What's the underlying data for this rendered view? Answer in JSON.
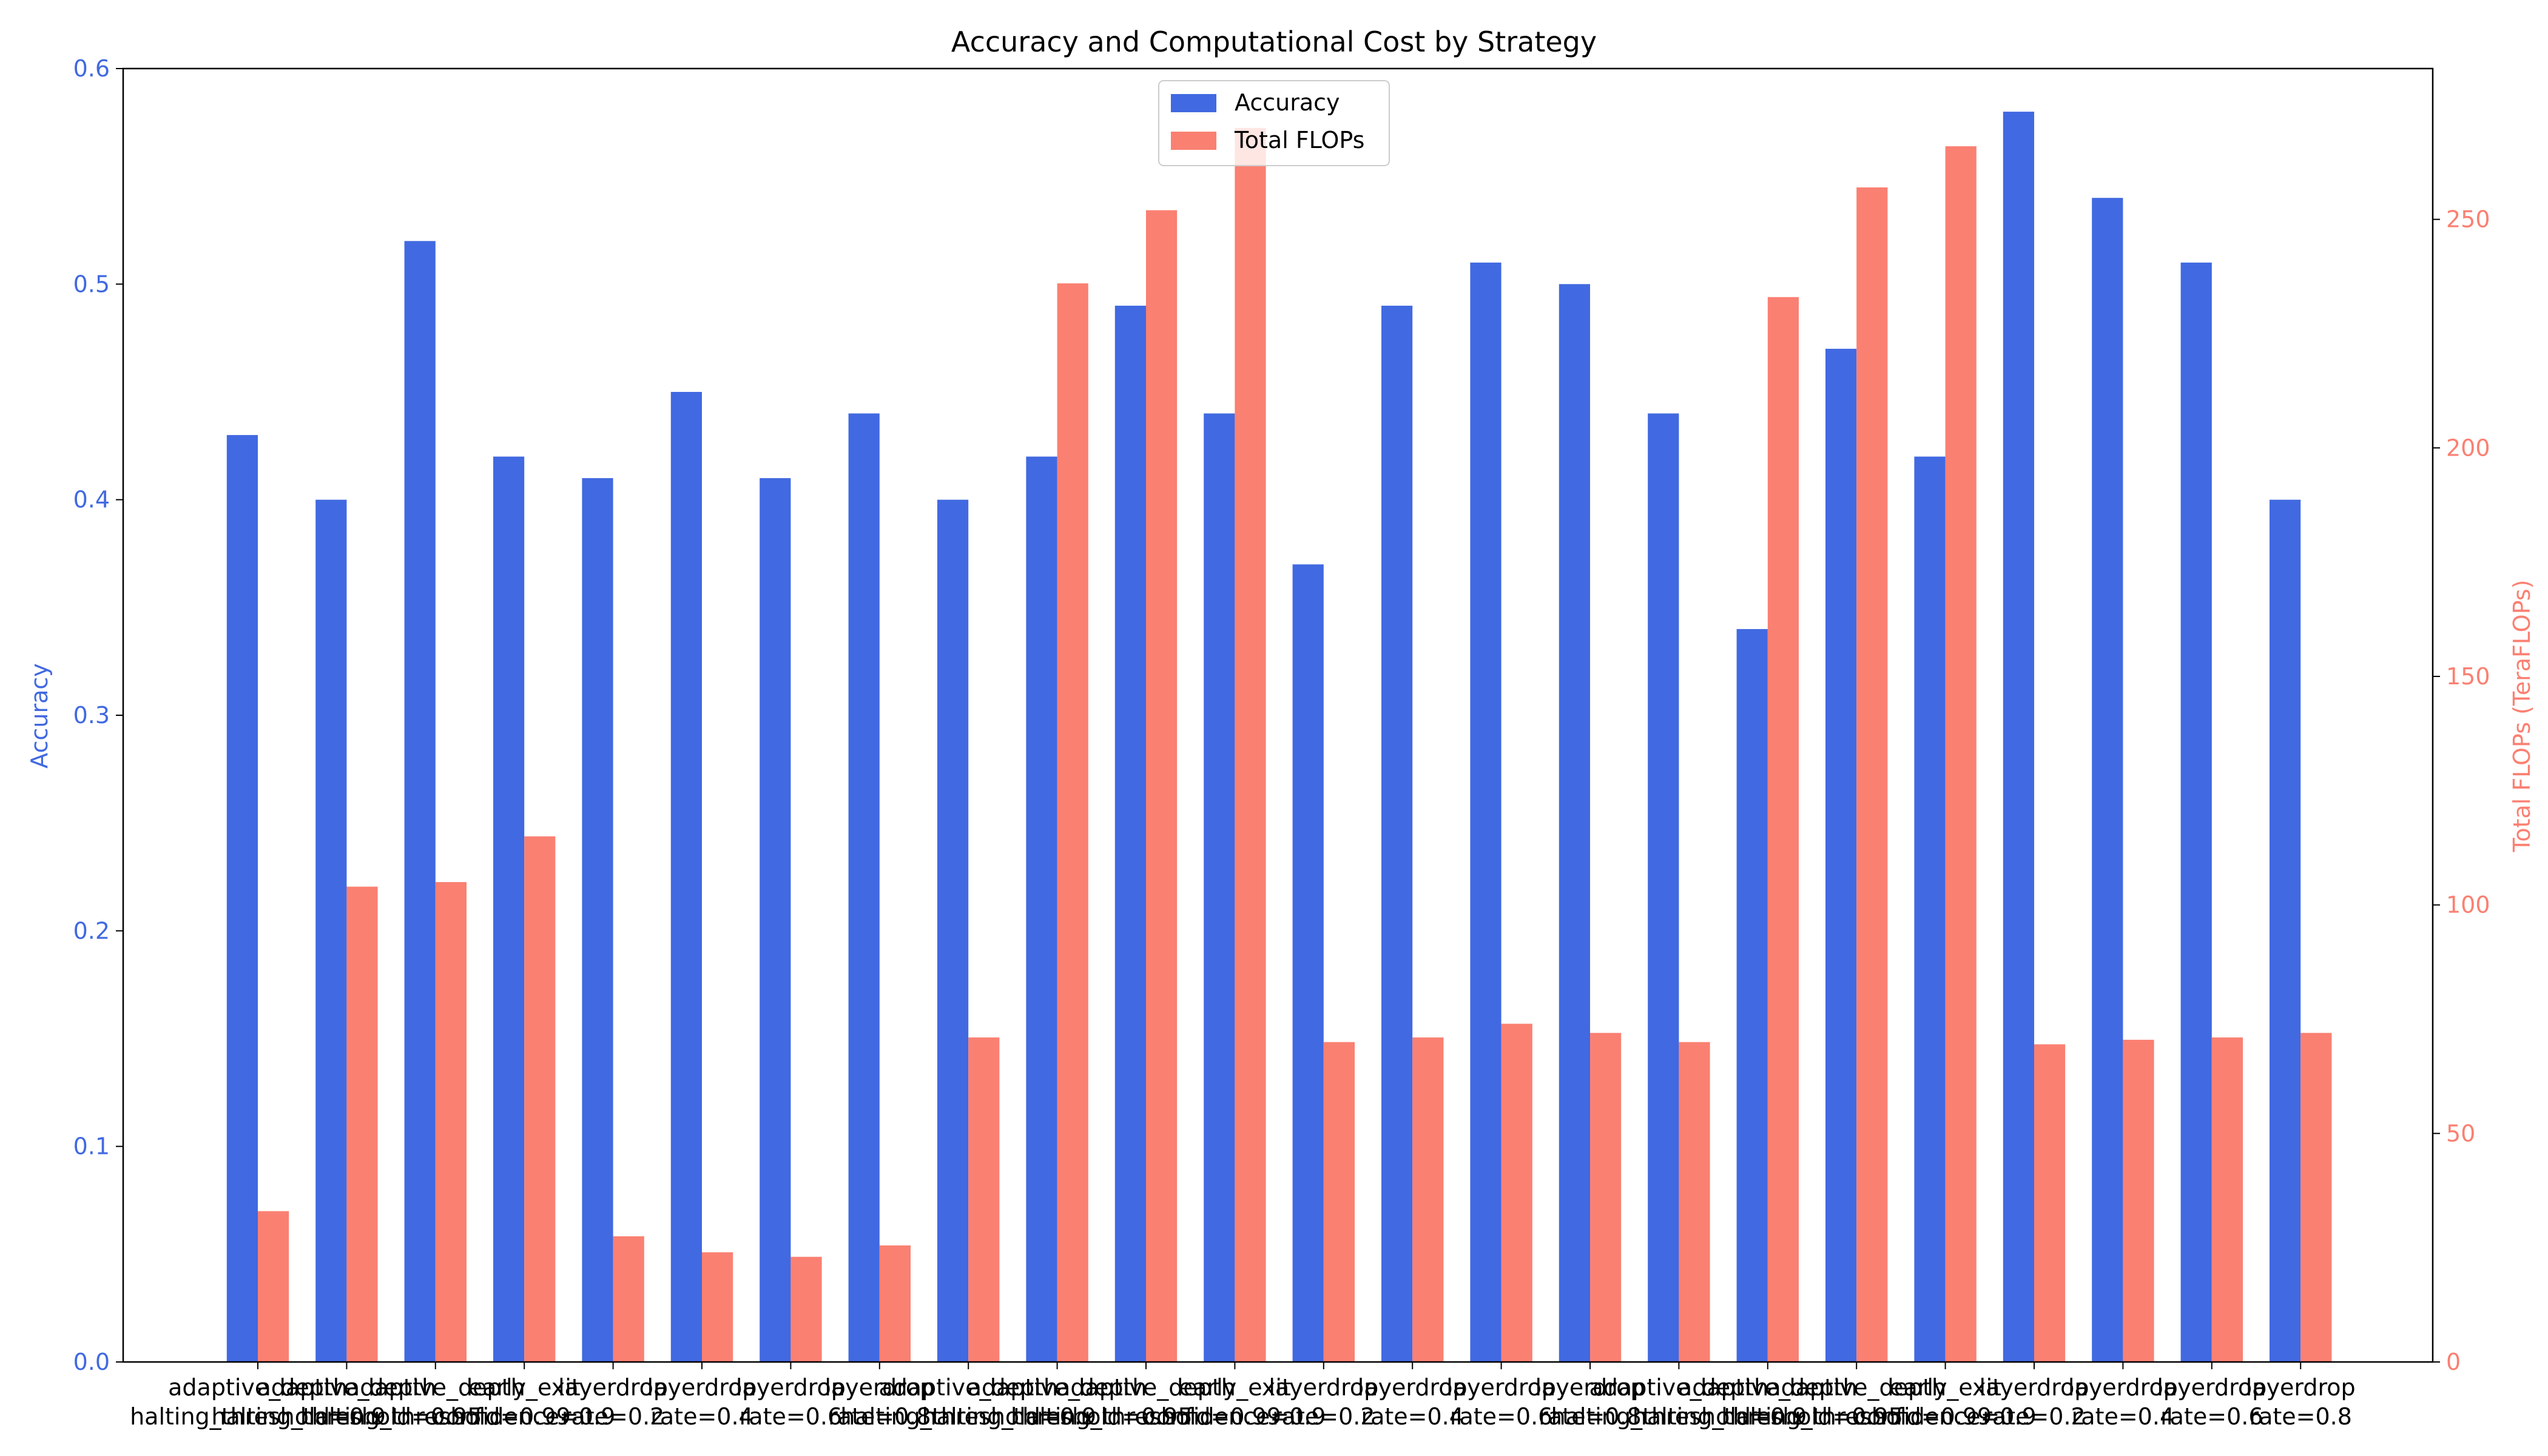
{
  "chart_data": {
    "type": "bar",
    "title": "Accuracy and Computational Cost by Strategy",
    "categories": [
      "adaptive_depth\nhalting_threshold=0.9",
      "adaptive_depth\nhalting_threshold=0.95",
      "adaptive_depth\nhalting_threshold=0.99",
      "early_exit\nconfidence=0.9",
      "layerdrop\nrate=0.2",
      "layerdrop\nrate=0.4",
      "layerdrop\nrate=0.6",
      "layerdrop\nrate=0.8",
      "adaptive_depth\nhalting_threshold=0.9",
      "adaptive_depth\nhalting_threshold=0.95",
      "adaptive_depth\nhalting_threshold=0.99",
      "early_exit\nconfidence=0.9",
      "layerdrop\nrate=0.2",
      "layerdrop\nrate=0.4",
      "layerdrop\nrate=0.6",
      "layerdrop\nrate=0.8",
      "adaptive_depth\nhalting_threshold=0.9",
      "adaptive_depth\nhalting_threshold=0.95",
      "adaptive_depth\nhalting_threshold=0.99",
      "early_exit\nconfidence=0.9",
      "layerdrop\nrate=0.2",
      "layerdrop\nrate=0.4",
      "layerdrop\nrate=0.6",
      "layerdrop\nrate=0.8"
    ],
    "series": [
      {
        "name": "Accuracy",
        "axis": "left",
        "color": "#4169e1",
        "values": [
          0.43,
          0.4,
          0.52,
          0.42,
          0.41,
          0.45,
          0.41,
          0.44,
          0.4,
          0.42,
          0.49,
          0.44,
          0.37,
          0.49,
          0.51,
          0.5,
          0.44,
          0.34,
          0.47,
          0.42,
          0.58,
          0.54,
          0.51,
          0.4
        ]
      },
      {
        "name": "Total FLOPs",
        "axis": "right",
        "color": "#fa8072",
        "values": [
          33,
          104,
          105,
          115,
          27.5,
          24,
          23,
          25.5,
          71,
          236,
          252,
          270,
          70,
          71,
          74,
          72,
          70,
          233,
          257,
          266,
          69.5,
          70.5,
          71,
          72
        ]
      }
    ],
    "ylabel": "Accuracy",
    "ylabel_right": "Total FLOPs (TeraFLOPs)",
    "ylim": [
      0,
      0.6
    ],
    "ylim_right": [
      0,
      283
    ],
    "yticks": [
      "0.0",
      "0.1",
      "0.2",
      "0.3",
      "0.4",
      "0.5",
      "0.6"
    ],
    "yticks_right": [
      "0",
      "50",
      "100",
      "150",
      "200",
      "250"
    ],
    "grid": false,
    "legend_position": "top-center",
    "left_axis_color": "#4169e1",
    "right_axis_color": "#fa8072"
  }
}
